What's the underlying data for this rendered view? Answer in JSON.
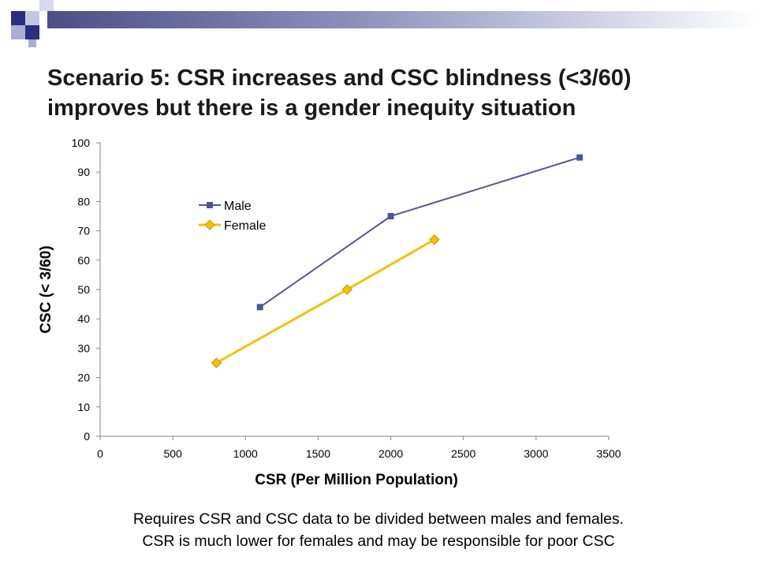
{
  "title": "Scenario 5: CSR increases and CSC blindness (<3/60) improves but there is a gender inequity situation",
  "caption": {
    "line1": "Requires CSR and CSC data to be divided between males and females.",
    "line2": "CSR is much lower for females and may be responsible for poor CSC"
  },
  "colors": {
    "header_squares": "#2b2f7f",
    "header_light": "#a9aed6",
    "male": "#4e5597",
    "female": "#f5c000",
    "female_marker_edge": "#c89a00"
  },
  "chart_data": {
    "type": "line",
    "xlabel": "CSR (Per Million Population)",
    "ylabel": "CSC (< 3/60)",
    "xlim": [
      0,
      3500
    ],
    "ylim": [
      0,
      100
    ],
    "xticks": [
      0,
      500,
      1000,
      1500,
      2000,
      2500,
      3000,
      3500
    ],
    "yticks": [
      0,
      10,
      20,
      30,
      40,
      50,
      60,
      70,
      80,
      90,
      100
    ],
    "grid": false,
    "legend_position": "upper-left",
    "series": [
      {
        "name": "Male",
        "marker": "square",
        "points": [
          [
            1100,
            44
          ],
          [
            2000,
            75
          ],
          [
            3300,
            95
          ]
        ]
      },
      {
        "name": "Female",
        "marker": "diamond",
        "points": [
          [
            800,
            25
          ],
          [
            1700,
            50
          ],
          [
            2300,
            67
          ]
        ]
      }
    ]
  }
}
